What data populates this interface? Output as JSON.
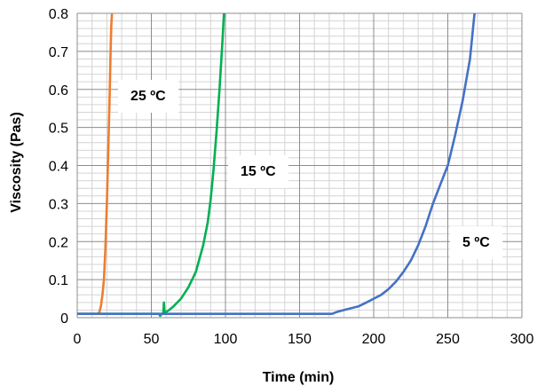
{
  "chart_data": {
    "type": "line",
    "xlabel": "Time (min)",
    "ylabel": "Viscosity (Pas)",
    "xlim": [
      0,
      300
    ],
    "ylim": [
      0,
      0.8
    ],
    "x_ticks": [
      "0",
      "50",
      "100",
      "150",
      "200",
      "250",
      "300"
    ],
    "y_ticks": [
      "0",
      "0.1",
      "0.2",
      "0.3",
      "0.4",
      "0.5",
      "0.6",
      "0.7",
      "0.8"
    ],
    "grid": true,
    "legend": "none",
    "series": [
      {
        "name": "25 ºC",
        "color": "#ED7D31",
        "x": [
          0,
          5,
          10,
          14,
          15,
          16,
          17,
          18,
          19,
          20,
          21,
          22,
          22.5,
          23,
          23.5
        ],
        "y": [
          0.01,
          0.01,
          0.01,
          0.01,
          0.015,
          0.03,
          0.06,
          0.1,
          0.18,
          0.3,
          0.45,
          0.6,
          0.7,
          0.77,
          0.8
        ]
      },
      {
        "name": "15 ºC",
        "color": "#00B050",
        "x": [
          0,
          55,
          56,
          57,
          58,
          58.5,
          59,
          60,
          62,
          65,
          70,
          75,
          80,
          85,
          88,
          90,
          92,
          94,
          96,
          98,
          99
        ],
        "y": [
          0.01,
          0.01,
          0.005,
          0.01,
          0.01,
          0.04,
          0.01,
          0.015,
          0.02,
          0.03,
          0.05,
          0.08,
          0.12,
          0.19,
          0.25,
          0.31,
          0.39,
          0.49,
          0.6,
          0.73,
          0.8
        ]
      },
      {
        "name": "5 ºC",
        "color": "#4472C4",
        "x": [
          0,
          20,
          60,
          100,
          150,
          172,
          175,
          180,
          185,
          190,
          195,
          200,
          205,
          210,
          215,
          220,
          225,
          230,
          235,
          240,
          245,
          250,
          255,
          260,
          265,
          268
        ],
        "y": [
          0.01,
          0.01,
          0.01,
          0.01,
          0.01,
          0.01,
          0.015,
          0.02,
          0.025,
          0.03,
          0.04,
          0.05,
          0.06,
          0.075,
          0.095,
          0.12,
          0.15,
          0.19,
          0.24,
          0.3,
          0.35,
          0.4,
          0.48,
          0.57,
          0.68,
          0.8
        ]
      }
    ],
    "annotations": [
      "25 ºC",
      "15 ºC",
      "5 ºC"
    ]
  }
}
